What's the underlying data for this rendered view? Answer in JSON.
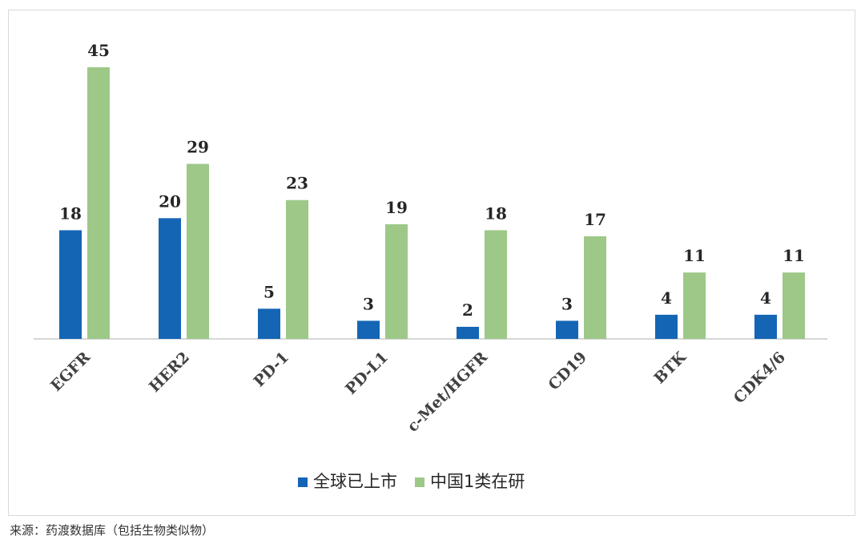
{
  "chart_data": {
    "type": "bar",
    "categories": [
      "EGFR",
      "HER2",
      "PD-1",
      "PD-L1",
      "c-Met/HGFR",
      "CD19",
      "BTK",
      "CDK4/6"
    ],
    "series": [
      {
        "name": "全球已上市",
        "color": "#1565b5",
        "values": [
          18,
          20,
          5,
          3,
          2,
          3,
          4,
          4
        ]
      },
      {
        "name": "中国1类在研",
        "color": "#9dc888",
        "values": [
          45,
          29,
          23,
          19,
          18,
          17,
          11,
          11
        ]
      }
    ],
    "ylim": [
      0,
      45
    ],
    "grid": false,
    "data_labels": true,
    "legend_position": "bottom"
  },
  "source_note": "来源：药渡数据库（包括生物类似物）"
}
